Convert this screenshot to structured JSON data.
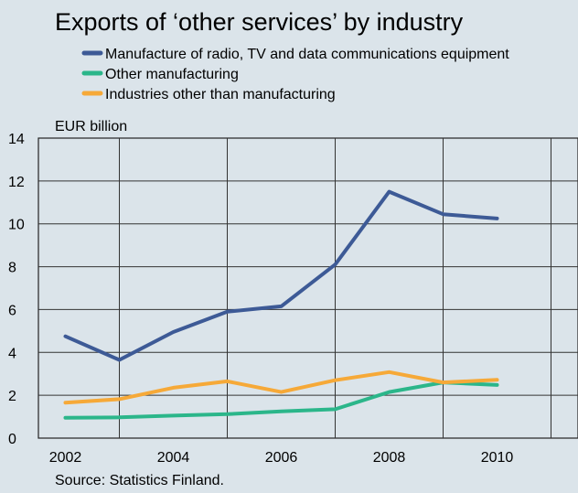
{
  "chart_data": {
    "type": "line",
    "title": "Exports of ‘other services’ by industry",
    "ylabel": "EUR billion",
    "source": "Source: Statistics Finland.",
    "x": [
      2002,
      2003,
      2004,
      2005,
      2006,
      2007,
      2008,
      2009,
      2010
    ],
    "xlim": [
      2001.5,
      2011.5
    ],
    "ylim": [
      0,
      14
    ],
    "x_ticks": [
      2002,
      2004,
      2006,
      2008,
      2010
    ],
    "y_ticks": [
      0,
      2,
      4,
      6,
      8,
      10,
      12,
      14
    ],
    "grid": true,
    "legend_position": "top",
    "series": [
      {
        "name": "Manufacture of radio, TV and data communications equipment",
        "color": "#3d5a96",
        "values": [
          4.75,
          3.65,
          4.95,
          5.9,
          6.15,
          8.1,
          11.5,
          10.45,
          10.25
        ]
      },
      {
        "name": "Other manufacturing",
        "color": "#2bb68a",
        "values": [
          0.95,
          0.97,
          1.05,
          1.12,
          1.25,
          1.35,
          2.15,
          2.6,
          2.48
        ]
      },
      {
        "name": "Industries other than manufacturing",
        "color": "#f6a938",
        "values": [
          1.65,
          1.82,
          2.35,
          2.65,
          2.15,
          2.7,
          3.08,
          2.6,
          2.72
        ]
      }
    ]
  }
}
